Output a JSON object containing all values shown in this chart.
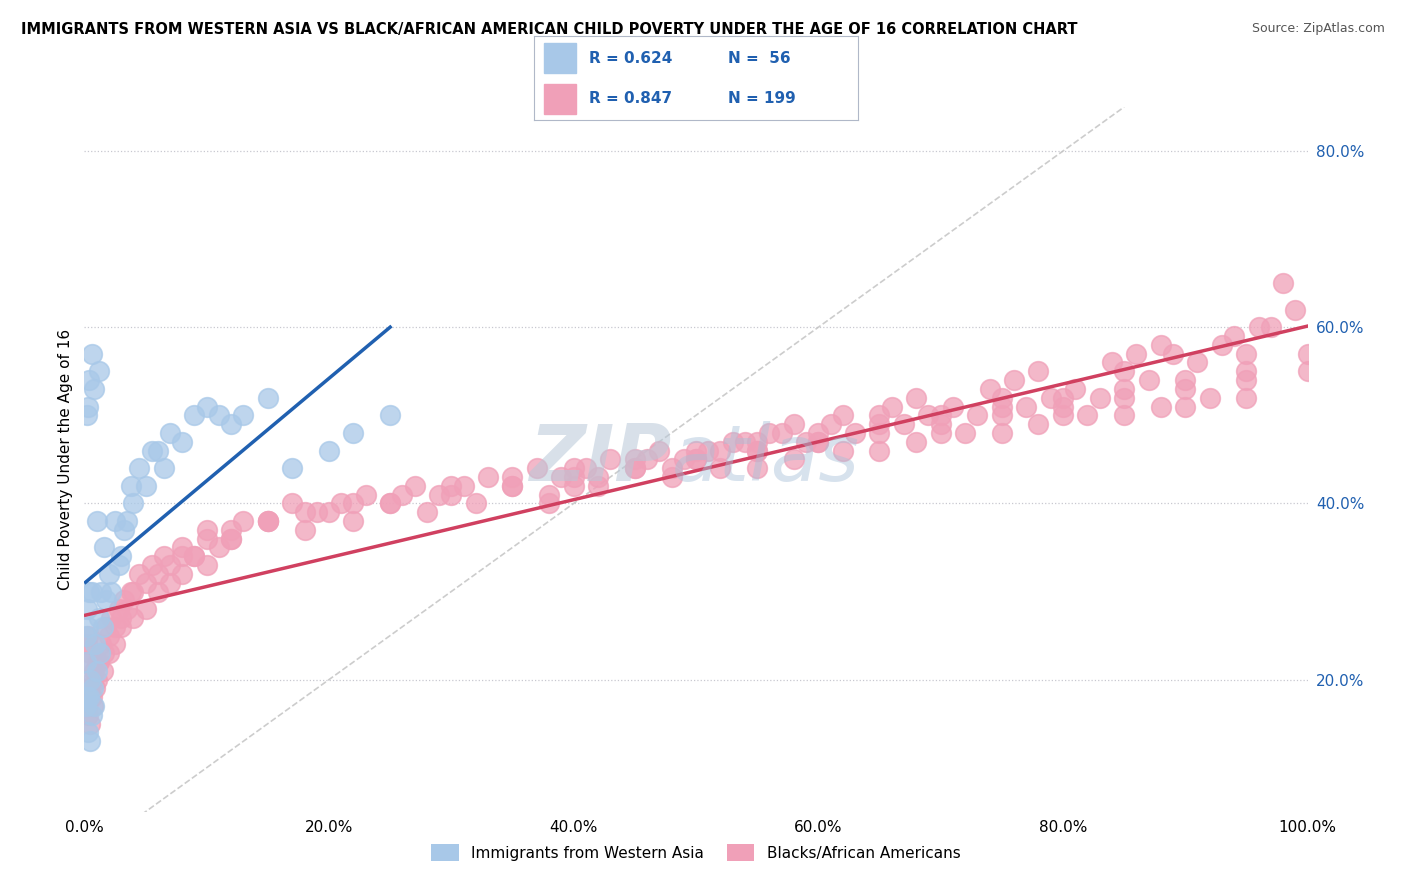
{
  "title": "IMMIGRANTS FROM WESTERN ASIA VS BLACK/AFRICAN AMERICAN CHILD POVERTY UNDER THE AGE OF 16 CORRELATION CHART",
  "source": "Source: ZipAtlas.com",
  "ylabel": "Child Poverty Under the Age of 16",
  "xlim": [
    0,
    1.0
  ],
  "ylim": [
    0.05,
    0.85
  ],
  "xtick_vals": [
    0.0,
    0.2,
    0.4,
    0.6,
    0.8,
    1.0
  ],
  "xtick_labels": [
    "0.0%",
    "20.0%",
    "40.0%",
    "60.0%",
    "80.0%",
    "100.0%"
  ],
  "ytick_vals": [
    0.2,
    0.4,
    0.6,
    0.8
  ],
  "ytick_labels": [
    "20.0%",
    "40.0%",
    "60.0%",
    "80.0%"
  ],
  "blue_color": "#a8c8e8",
  "pink_color": "#f0a0b8",
  "blue_line_color": "#2060b0",
  "pink_line_color": "#d04060",
  "diagonal_color": "#c0c0c0",
  "watermark_color": "#d0dce8",
  "background_color": "#ffffff",
  "legend_text_color": "#2060b0",
  "blue_scatter_x": [
    0.001,
    0.001,
    0.001,
    0.002,
    0.002,
    0.003,
    0.003,
    0.004,
    0.004,
    0.005,
    0.005,
    0.006,
    0.006,
    0.007,
    0.008,
    0.009,
    0.01,
    0.01,
    0.012,
    0.013,
    0.014,
    0.015,
    0.016,
    0.018,
    0.02,
    0.022,
    0.025,
    0.028,
    0.03,
    0.032,
    0.035,
    0.038,
    0.04,
    0.045,
    0.05,
    0.055,
    0.06,
    0.065,
    0.07,
    0.08,
    0.09,
    0.1,
    0.11,
    0.12,
    0.13,
    0.15,
    0.17,
    0.2,
    0.22,
    0.25,
    0.002,
    0.003,
    0.004,
    0.006,
    0.008,
    0.012
  ],
  "blue_scatter_y": [
    0.17,
    0.22,
    0.25,
    0.18,
    0.28,
    0.14,
    0.26,
    0.18,
    0.3,
    0.13,
    0.2,
    0.16,
    0.3,
    0.19,
    0.17,
    0.24,
    0.21,
    0.38,
    0.27,
    0.23,
    0.3,
    0.26,
    0.35,
    0.29,
    0.32,
    0.3,
    0.38,
    0.33,
    0.34,
    0.37,
    0.38,
    0.42,
    0.4,
    0.44,
    0.42,
    0.46,
    0.46,
    0.44,
    0.48,
    0.47,
    0.5,
    0.51,
    0.5,
    0.49,
    0.5,
    0.52,
    0.44,
    0.46,
    0.48,
    0.5,
    0.5,
    0.51,
    0.54,
    0.57,
    0.53,
    0.55
  ],
  "pink_scatter_x": [
    0.001,
    0.001,
    0.002,
    0.002,
    0.003,
    0.003,
    0.004,
    0.005,
    0.005,
    0.006,
    0.007,
    0.008,
    0.009,
    0.01,
    0.012,
    0.014,
    0.016,
    0.018,
    0.02,
    0.022,
    0.025,
    0.028,
    0.03,
    0.032,
    0.035,
    0.038,
    0.04,
    0.045,
    0.05,
    0.055,
    0.06,
    0.065,
    0.07,
    0.08,
    0.09,
    0.1,
    0.12,
    0.13,
    0.15,
    0.17,
    0.19,
    0.21,
    0.23,
    0.25,
    0.27,
    0.29,
    0.31,
    0.33,
    0.35,
    0.37,
    0.39,
    0.41,
    0.43,
    0.45,
    0.47,
    0.49,
    0.51,
    0.53,
    0.55,
    0.57,
    0.59,
    0.61,
    0.63,
    0.65,
    0.67,
    0.69,
    0.71,
    0.73,
    0.75,
    0.77,
    0.79,
    0.81,
    0.83,
    0.85,
    0.87,
    0.89,
    0.91,
    0.93,
    0.95,
    0.97,
    0.99,
    0.1,
    0.15,
    0.2,
    0.25,
    0.3,
    0.35,
    0.4,
    0.45,
    0.5,
    0.55,
    0.6,
    0.65,
    0.7,
    0.75,
    0.8,
    0.85,
    0.9,
    0.95,
    1.0,
    0.08,
    0.12,
    0.18,
    0.22,
    0.28,
    0.32,
    0.38,
    0.42,
    0.48,
    0.52,
    0.58,
    0.62,
    0.68,
    0.72,
    0.78,
    0.82,
    0.88,
    0.92,
    0.5,
    0.6,
    0.7,
    0.8,
    0.9,
    0.4,
    0.55,
    0.65,
    0.75,
    0.85,
    0.95,
    0.002,
    0.003,
    0.005,
    0.007,
    0.01,
    0.015,
    0.02,
    0.025,
    0.03,
    0.04,
    0.05,
    0.06,
    0.07,
    0.08,
    0.09,
    0.1,
    0.11,
    0.12,
    0.15,
    0.18,
    0.22,
    0.26,
    0.3,
    0.35,
    0.4,
    0.45,
    0.5,
    0.55,
    0.6,
    0.65,
    0.7,
    0.75,
    0.8,
    0.85,
    0.9,
    0.95,
    1.0,
    0.42,
    0.46,
    0.54,
    0.58,
    0.66,
    0.74,
    0.78,
    0.86,
    0.94,
    0.98,
    0.48,
    0.52,
    0.56,
    0.62,
    0.68,
    0.76,
    0.84,
    0.88,
    0.96,
    0.38
  ],
  "pink_scatter_y": [
    0.18,
    0.22,
    0.17,
    0.24,
    0.16,
    0.25,
    0.19,
    0.15,
    0.23,
    0.18,
    0.17,
    0.21,
    0.19,
    0.2,
    0.22,
    0.24,
    0.23,
    0.26,
    0.25,
    0.27,
    0.26,
    0.28,
    0.27,
    0.29,
    0.28,
    0.3,
    0.3,
    0.32,
    0.31,
    0.33,
    0.32,
    0.34,
    0.33,
    0.35,
    0.34,
    0.36,
    0.37,
    0.38,
    0.38,
    0.4,
    0.39,
    0.4,
    0.41,
    0.4,
    0.42,
    0.41,
    0.42,
    0.43,
    0.42,
    0.44,
    0.43,
    0.44,
    0.45,
    0.44,
    0.46,
    0.45,
    0.46,
    0.47,
    0.46,
    0.48,
    0.47,
    0.49,
    0.48,
    0.5,
    0.49,
    0.5,
    0.51,
    0.5,
    0.52,
    0.51,
    0.52,
    0.53,
    0.52,
    0.55,
    0.54,
    0.57,
    0.56,
    0.58,
    0.57,
    0.6,
    0.62,
    0.37,
    0.38,
    0.39,
    0.4,
    0.41,
    0.42,
    0.43,
    0.44,
    0.45,
    0.46,
    0.47,
    0.48,
    0.49,
    0.5,
    0.51,
    0.52,
    0.53,
    0.54,
    0.55,
    0.34,
    0.36,
    0.37,
    0.38,
    0.39,
    0.4,
    0.41,
    0.42,
    0.43,
    0.44,
    0.45,
    0.46,
    0.47,
    0.48,
    0.49,
    0.5,
    0.51,
    0.52,
    0.45,
    0.47,
    0.48,
    0.5,
    0.51,
    0.42,
    0.44,
    0.46,
    0.48,
    0.5,
    0.52,
    0.17,
    0.19,
    0.18,
    0.2,
    0.22,
    0.21,
    0.23,
    0.24,
    0.26,
    0.27,
    0.28,
    0.3,
    0.31,
    0.32,
    0.34,
    0.33,
    0.35,
    0.36,
    0.38,
    0.39,
    0.4,
    0.41,
    0.42,
    0.43,
    0.44,
    0.45,
    0.46,
    0.47,
    0.48,
    0.49,
    0.5,
    0.51,
    0.52,
    0.53,
    0.54,
    0.55,
    0.57,
    0.43,
    0.45,
    0.47,
    0.49,
    0.51,
    0.53,
    0.55,
    0.57,
    0.59,
    0.65,
    0.44,
    0.46,
    0.48,
    0.5,
    0.52,
    0.54,
    0.56,
    0.58,
    0.6,
    0.4
  ]
}
